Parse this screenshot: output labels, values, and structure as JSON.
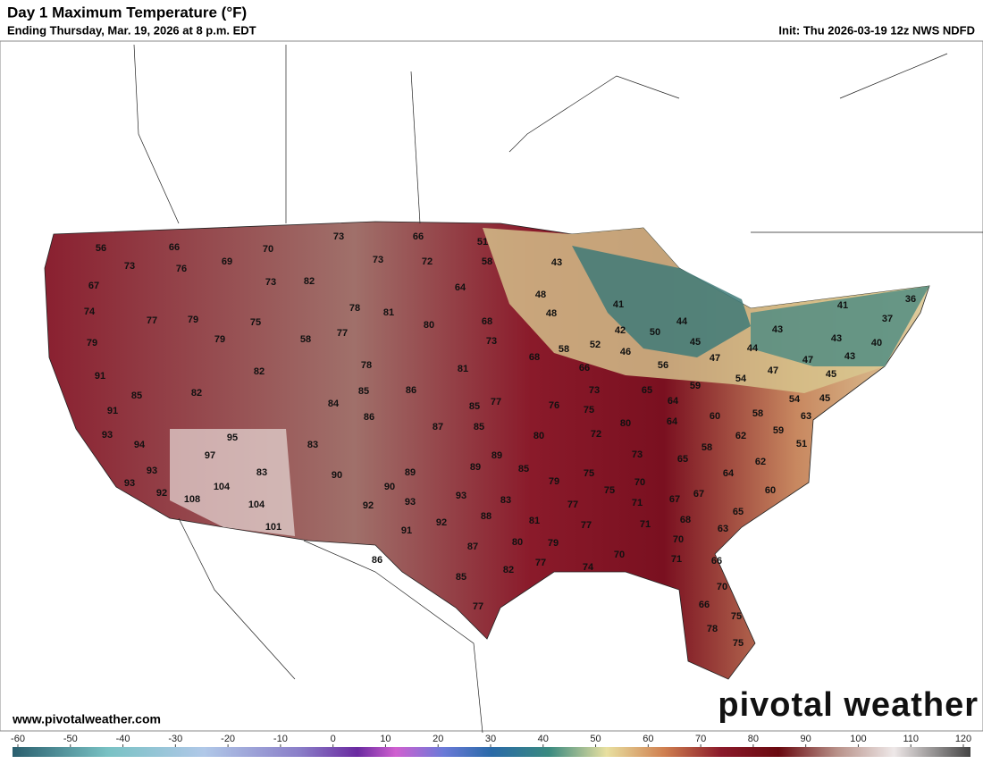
{
  "header": {
    "title": "Day 1 Maximum Temperature (°F)",
    "subtitle": "Ending Thursday, Mar. 19, 2026 at 8 p.m. EDT",
    "init": "Init: Thu 2026-03-19 12z NWS NDFD"
  },
  "website": "www.pivotalweather.com",
  "logo": "pivotal weather",
  "temperatures": [
    56,
    66,
    73,
    76,
    69,
    70,
    73,
    66,
    51,
    58,
    73,
    72,
    67,
    73,
    82,
    64,
    43,
    48,
    48,
    74,
    77,
    79,
    75,
    78,
    81,
    80,
    68,
    41,
    42,
    50,
    44,
    45,
    79,
    79,
    58,
    77,
    73,
    58,
    52,
    46,
    56,
    47,
    44,
    43,
    41,
    36,
    37,
    40,
    43,
    43,
    47,
    47,
    54,
    91,
    82,
    78,
    81,
    68,
    66,
    85,
    82,
    85,
    86,
    77,
    76,
    73,
    65,
    59,
    45,
    45,
    54,
    91,
    84,
    86,
    87,
    85,
    85,
    75,
    80,
    64,
    64,
    60,
    58,
    63,
    93,
    95,
    83,
    80,
    72,
    62,
    59,
    94,
    97,
    89,
    89,
    85,
    73,
    58,
    65,
    51,
    93,
    83,
    90,
    89,
    79,
    75,
    70,
    64,
    62,
    93,
    104,
    90,
    75,
    67,
    60,
    92,
    108,
    104,
    92,
    93,
    93,
    83,
    77,
    71,
    67,
    65,
    101,
    91,
    92,
    88,
    81,
    77,
    71,
    68,
    63,
    79,
    70,
    87,
    80,
    86,
    77,
    74,
    70,
    71,
    66,
    82,
    85,
    70,
    77,
    66,
    75,
    78,
    75
  ],
  "colorbar": {
    "ticks": [
      -60,
      -50,
      -40,
      -30,
      -20,
      -10,
      0,
      10,
      20,
      30,
      40,
      50,
      60,
      70,
      80,
      90,
      100,
      110,
      120
    ]
  }
}
